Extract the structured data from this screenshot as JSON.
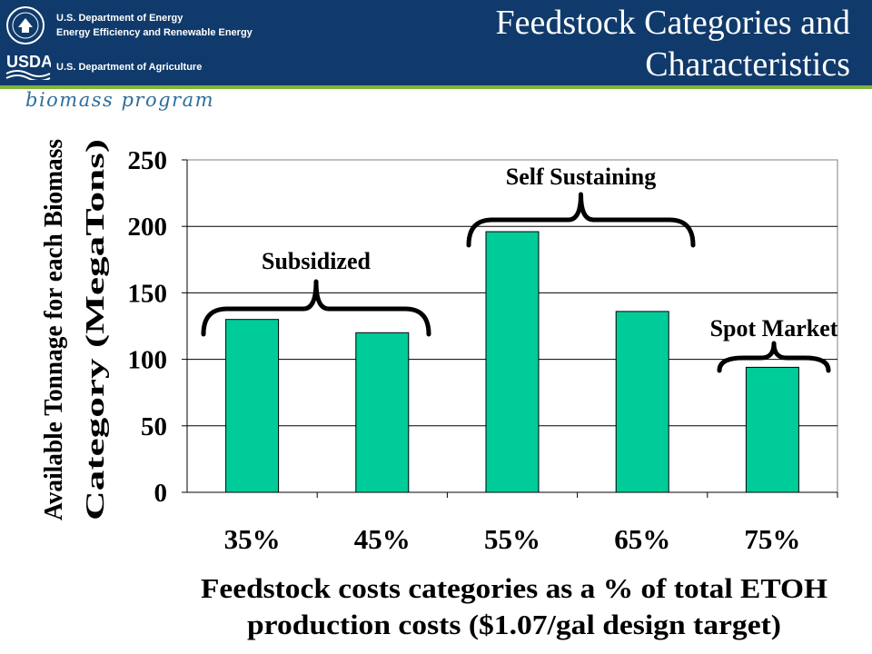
{
  "header": {
    "doe_line1": "U.S. Department of Energy",
    "doe_line2": "Energy Efficiency and Renewable Energy",
    "usda_logo_text": "USDA",
    "usda_line": "U.S. Department of Agriculture",
    "program_name": "biomass program",
    "title": "Feedstock Categories and Characteristics"
  },
  "colors": {
    "banner": "#103a6b",
    "accent_rule": "#7fb23a",
    "bar_fill": "#00cc99",
    "bar_stroke": "#000000"
  },
  "chart_data": {
    "type": "bar",
    "categories": [
      "35%",
      "45%",
      "55%",
      "65%",
      "75%"
    ],
    "values": [
      130,
      120,
      196,
      136,
      94
    ],
    "ylim": [
      0,
      250
    ],
    "yticks": [
      0,
      50,
      100,
      150,
      200,
      250
    ],
    "ylabel": "Available Tonnage for each Biomass Category (MegaTons)",
    "xlabel": "Feedstock costs categories as a % of total ETOH production costs ($1.07/gal design target)",
    "grid": true,
    "annotations": [
      {
        "label": "Subsidized",
        "categories": [
          "35%",
          "45%"
        ]
      },
      {
        "label": "Self Sustaining",
        "categories": [
          "55%",
          "65%"
        ]
      },
      {
        "label": "Spot Market",
        "categories": [
          "75%"
        ]
      }
    ]
  }
}
